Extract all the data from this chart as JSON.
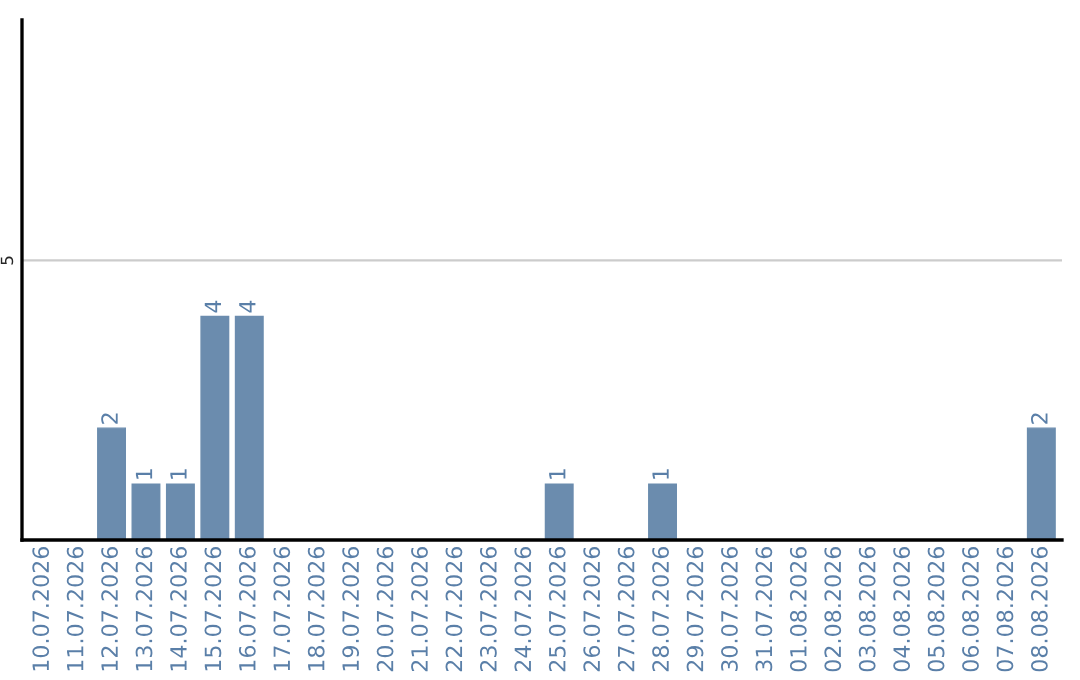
{
  "chart_data": {
    "type": "bar",
    "categories": [
      "10.07.2026",
      "11.07.2026",
      "12.07.2026",
      "13.07.2026",
      "14.07.2026",
      "15.07.2026",
      "16.07.2026",
      "17.07.2026",
      "18.07.2026",
      "19.07.2026",
      "20.07.2026",
      "21.07.2026",
      "22.07.2026",
      "23.07.2026",
      "24.07.2026",
      "25.07.2026",
      "26.07.2026",
      "27.07.2026",
      "28.07.2026",
      "29.07.2026",
      "30.07.2026",
      "31.07.2026",
      "01.08.2026",
      "02.08.2026",
      "03.08.2026",
      "04.08.2026",
      "05.08.2026",
      "06.08.2026",
      "07.08.2026",
      "08.08.2026"
    ],
    "values": [
      0,
      0,
      2,
      1,
      1,
      4,
      4,
      0,
      0,
      0,
      0,
      0,
      0,
      0,
      0,
      1,
      0,
      0,
      1,
      0,
      0,
      0,
      0,
      0,
      0,
      0,
      0,
      0,
      0,
      2
    ],
    "value_labels": [
      null,
      null,
      "2",
      "1",
      "1",
      "4",
      "4",
      null,
      null,
      null,
      null,
      null,
      null,
      null,
      null,
      "1",
      null,
      null,
      "1",
      null,
      null,
      null,
      null,
      null,
      null,
      null,
      null,
      null,
      null,
      "2"
    ],
    "color": "#6b8cae",
    "ylim": [
      0,
      9.3
    ],
    "yticks": [
      5
    ],
    "grid": "y"
  }
}
